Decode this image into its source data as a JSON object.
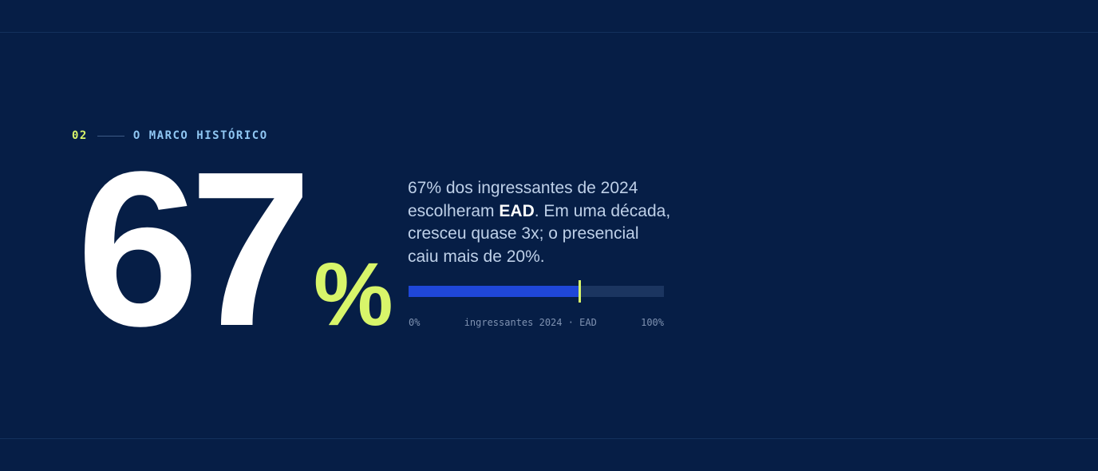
{
  "section": {
    "number": "02",
    "label": "O MARCO HISTÓRICO"
  },
  "stat": {
    "value": "67",
    "unit": "%"
  },
  "description": {
    "before": "67% dos ingressantes de 2024 escolheram ",
    "highlight": "EAD",
    "after": ". Em uma década, cresceu quase 3x; o presencial caiu mais de 20%."
  },
  "progress": {
    "value_percent": 67,
    "min_label": "0%",
    "caption": "ingressantes 2024 · EAD",
    "max_label": "100%"
  },
  "colors": {
    "background": "#061e46",
    "accent": "#d8f56a",
    "bar_fill": "#1f47d8",
    "bar_track": "#1b3560",
    "eyebrow_label": "#8fc6f2"
  }
}
